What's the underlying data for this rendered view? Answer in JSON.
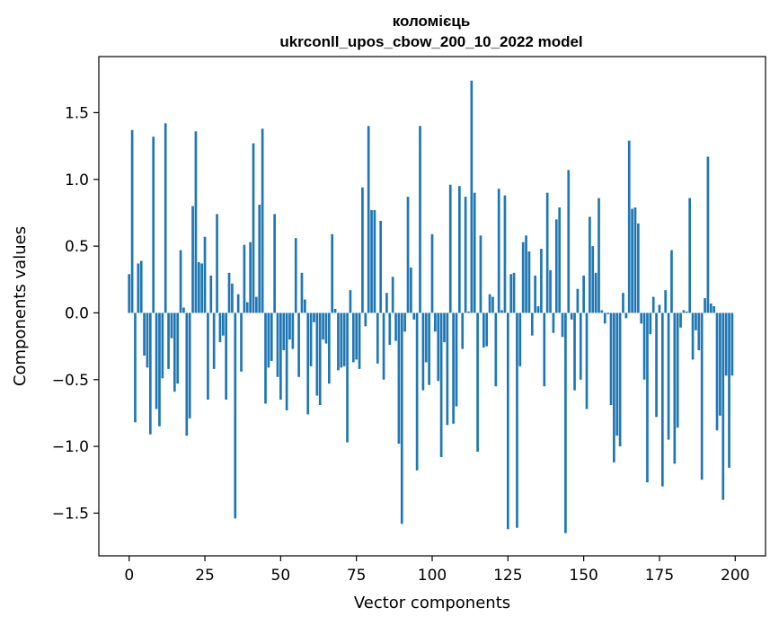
{
  "chart_data": {
    "type": "bar",
    "title": "коломієць",
    "subtitle": "ukrconll_upos_cbow_200_10_2022 model",
    "xlabel": "Vector components",
    "ylabel": "Components values",
    "xlim": [
      -10,
      210
    ],
    "ylim": [
      -1.82,
      1.92
    ],
    "xticks": [
      0,
      25,
      50,
      75,
      100,
      125,
      150,
      175,
      200
    ],
    "yticks": [
      -1.5,
      -1.0,
      -0.5,
      0.0,
      0.5,
      1.0,
      1.5
    ],
    "ytick_labels": [
      "−1.5",
      "−1.0",
      "−0.5",
      "0.0",
      "0.5",
      "1.0",
      "1.5"
    ],
    "grid": false,
    "bar_color": "#1f77b4",
    "x": [
      0,
      1,
      2,
      3,
      4,
      5,
      6,
      7,
      8,
      9,
      10,
      11,
      12,
      13,
      14,
      15,
      16,
      17,
      18,
      19,
      20,
      21,
      22,
      23,
      24,
      25,
      26,
      27,
      28,
      29,
      30,
      31,
      32,
      33,
      34,
      35,
      36,
      37,
      38,
      39,
      40,
      41,
      42,
      43,
      44,
      45,
      46,
      47,
      48,
      49,
      50,
      51,
      52,
      53,
      54,
      55,
      56,
      57,
      58,
      59,
      60,
      61,
      62,
      63,
      64,
      65,
      66,
      67,
      68,
      69,
      70,
      71,
      72,
      73,
      74,
      75,
      76,
      77,
      78,
      79,
      80,
      81,
      82,
      83,
      84,
      85,
      86,
      87,
      88,
      89,
      90,
      91,
      92,
      93,
      94,
      95,
      96,
      97,
      98,
      99,
      100,
      101,
      102,
      103,
      104,
      105,
      106,
      107,
      108,
      109,
      110,
      111,
      112,
      113,
      114,
      115,
      116,
      117,
      118,
      119,
      120,
      121,
      122,
      123,
      124,
      125,
      126,
      127,
      128,
      129,
      130,
      131,
      132,
      133,
      134,
      135,
      136,
      137,
      138,
      139,
      140,
      141,
      142,
      143,
      144,
      145,
      146,
      147,
      148,
      149,
      150,
      151,
      152,
      153,
      154,
      155,
      156,
      157,
      158,
      159,
      160,
      161,
      162,
      163,
      164,
      165,
      166,
      167,
      168,
      169,
      170,
      171,
      172,
      173,
      174,
      175,
      176,
      177,
      178,
      179,
      180,
      181,
      182,
      183,
      184,
      185,
      186,
      187,
      188,
      189,
      190,
      191,
      192,
      193,
      194,
      195,
      196,
      197,
      198,
      199
    ],
    "values": [
      0.29,
      1.37,
      -0.82,
      0.37,
      0.39,
      -0.32,
      -0.41,
      -0.91,
      1.32,
      -0.72,
      -0.85,
      -0.49,
      1.42,
      -0.42,
      -0.19,
      -0.59,
      -0.53,
      0.47,
      0.04,
      -0.92,
      -0.79,
      0.8,
      1.36,
      0.38,
      0.37,
      0.57,
      -0.65,
      0.28,
      -0.42,
      0.74,
      -0.22,
      -0.17,
      -0.65,
      0.3,
      0.22,
      -1.54,
      0.14,
      -0.44,
      0.51,
      0.08,
      0.53,
      1.27,
      0.12,
      0.81,
      1.38,
      -0.68,
      -0.41,
      -0.36,
      0.74,
      -0.48,
      -0.65,
      -0.28,
      -0.73,
      -0.2,
      -0.27,
      0.56,
      -0.48,
      0.3,
      0.1,
      -0.76,
      -0.4,
      -0.07,
      -0.62,
      -0.69,
      -0.2,
      -0.23,
      -0.53,
      0.59,
      0.03,
      -0.43,
      -0.41,
      -0.4,
      -0.97,
      0.17,
      -0.37,
      -0.35,
      -0.42,
      0.94,
      -0.1,
      1.4,
      0.77,
      0.77,
      -0.38,
      0.69,
      -0.5,
      0.15,
      -0.24,
      0.27,
      -0.21,
      -0.98,
      -1.58,
      -0.14,
      0.87,
      0.34,
      -0.05,
      -1.18,
      1.4,
      -0.58,
      -0.37,
      -0.54,
      0.59,
      -0.14,
      -0.51,
      -1.08,
      -0.22,
      -0.84,
      0.96,
      -0.83,
      -0.7,
      0.95,
      -0.27,
      0.87,
      0.01,
      1.74,
      0.9,
      -1.04,
      0.58,
      -0.26,
      -0.25,
      0.14,
      0.12,
      -0.55,
      0.93,
      0.02,
      0.88,
      -1.62,
      0.29,
      0.3,
      -1.61,
      -0.4,
      0.53,
      0.58,
      0.46,
      -0.17,
      0.28,
      0.05,
      0.48,
      -0.55,
      0.9,
      0.32,
      -0.15,
      0.7,
      0.79,
      -0.18,
      -1.65,
      1.07,
      -0.05,
      -0.58,
      0.18,
      -0.5,
      0.28,
      -0.72,
      0.72,
      0.5,
      0.3,
      0.86,
      0.02,
      -0.08,
      -0.01,
      -0.69,
      -1.12,
      -0.92,
      -1.0,
      0.15,
      -0.04,
      1.29,
      0.78,
      0.79,
      0.67,
      -0.08,
      -0.5,
      -1.27,
      -0.16,
      0.12,
      -0.78,
      0.06,
      -1.3,
      0.17,
      -0.95,
      0.47,
      -1.13,
      -0.86,
      -0.11,
      0.02,
      0.01,
      0.86,
      -0.35,
      -0.13,
      -0.28,
      -1.25,
      0.11,
      1.17,
      0.07,
      0.05,
      -0.88,
      -0.77,
      -1.4,
      -0.47,
      -1.16,
      -0.47
    ]
  }
}
